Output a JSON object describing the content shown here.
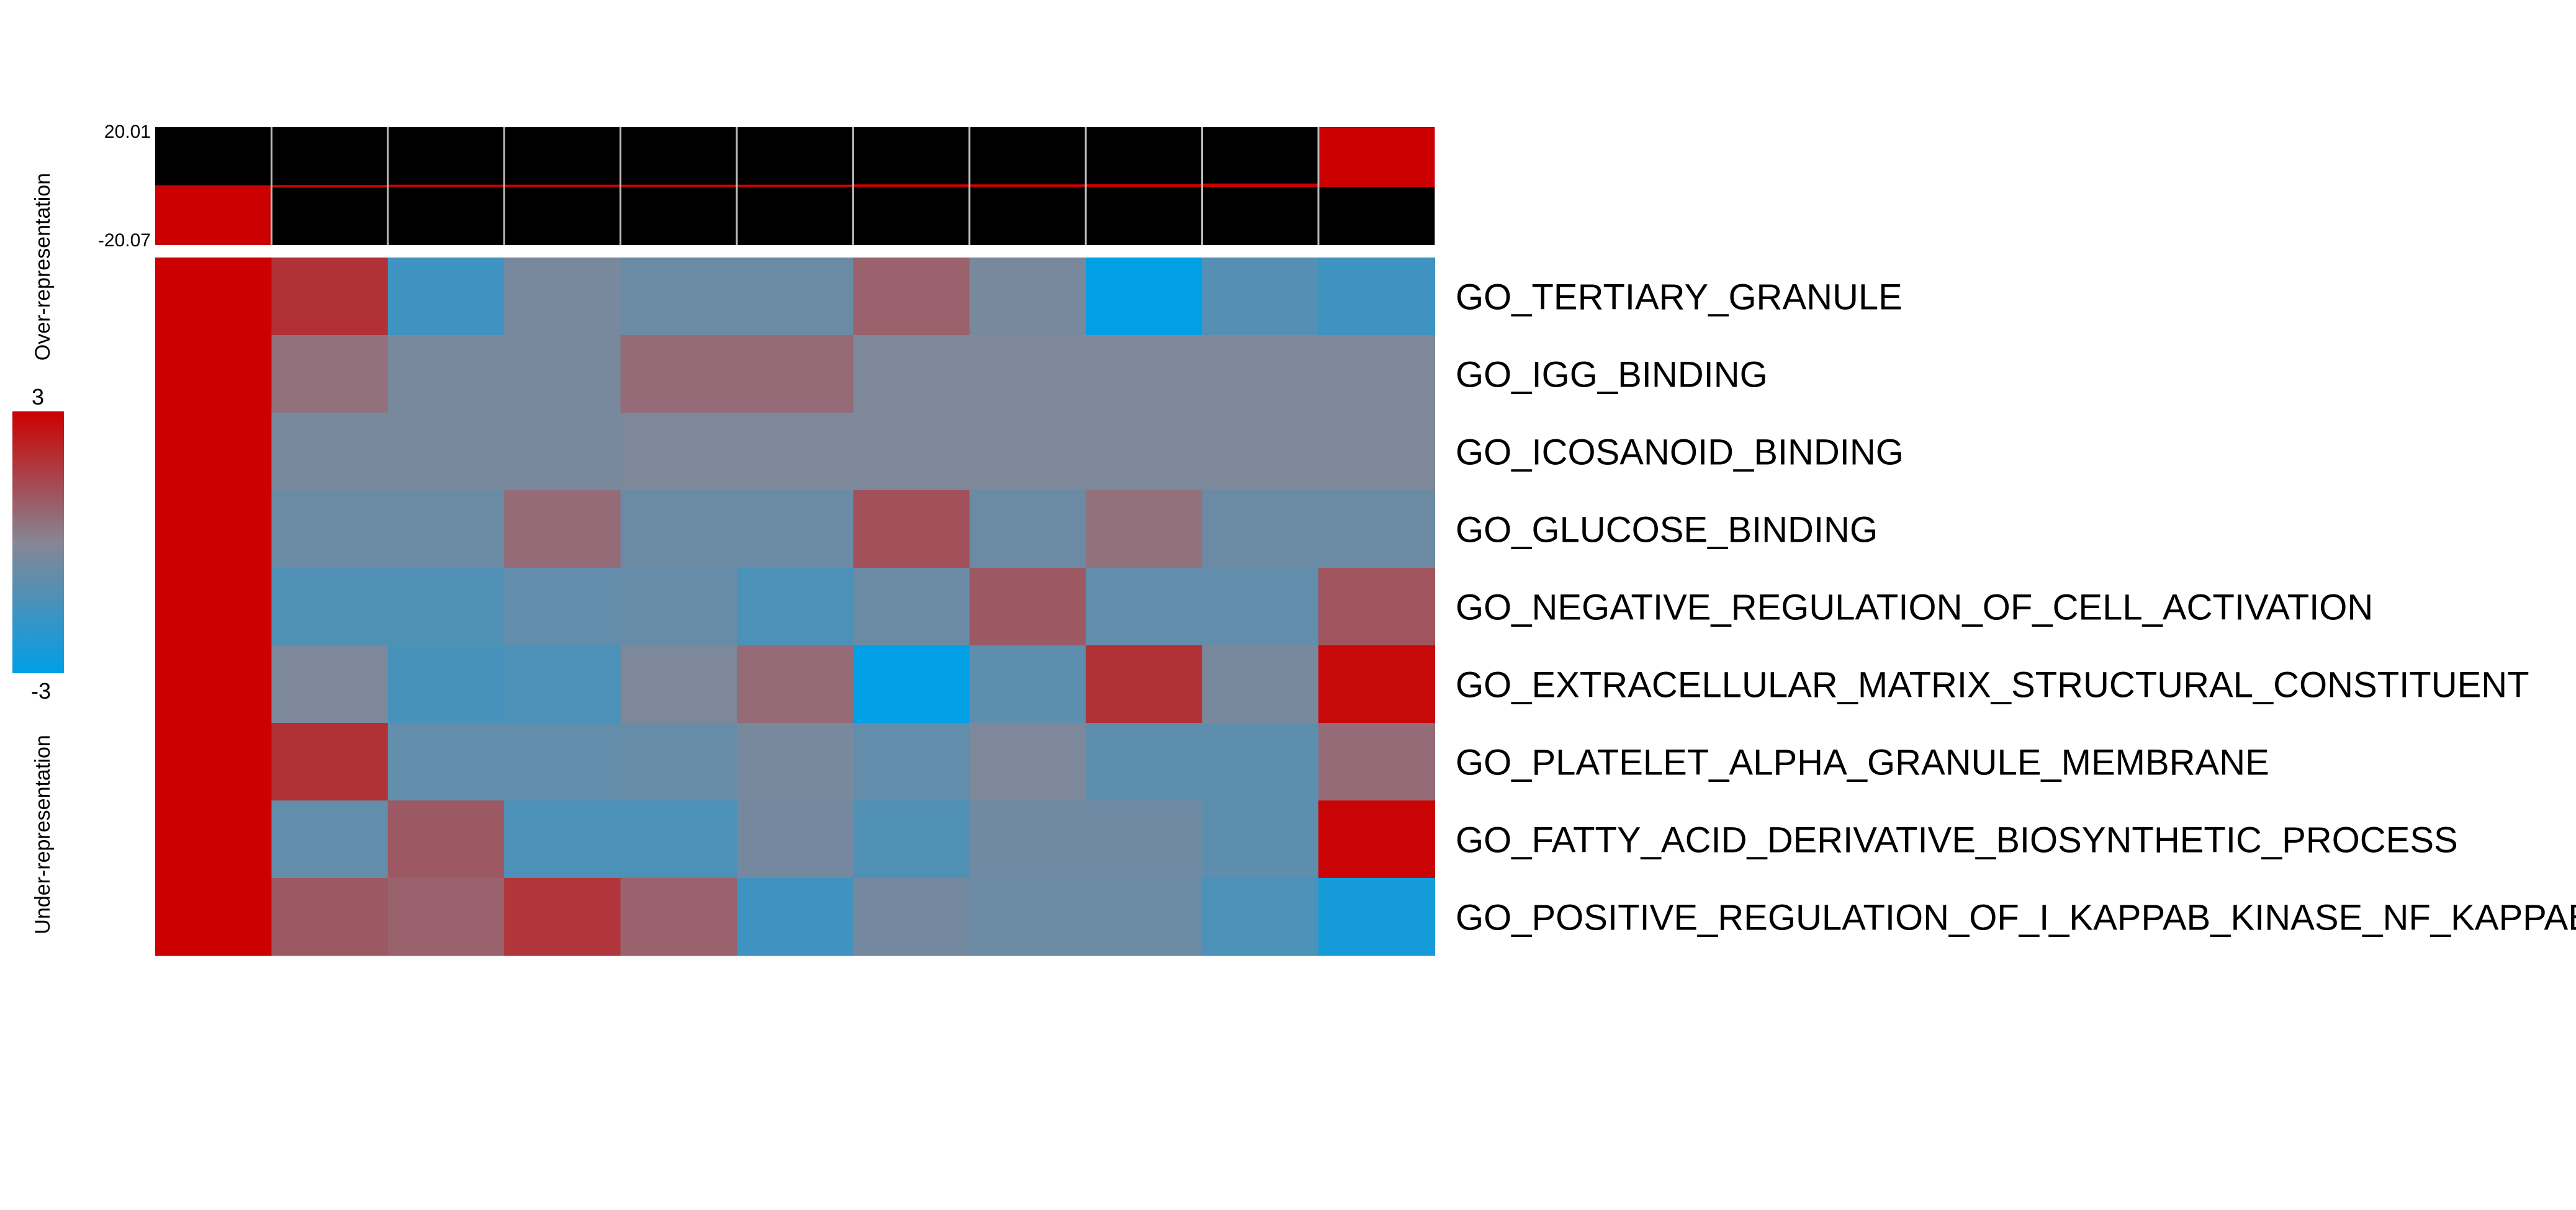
{
  "chart_data": {
    "type": "heatmap",
    "colorbar": {
      "min_label": "-3",
      "max_label": "3",
      "range": [
        -3,
        3
      ],
      "colors": [
        "#009fe6",
        "#868695",
        "#cc0000"
      ]
    },
    "side_labels": {
      "over": "Over-representation",
      "under": "Under-representation"
    },
    "top_bar": {
      "max_label": "20.01",
      "min_label": "-20.07",
      "range": [
        -20.07,
        20.01
      ],
      "over_values": [
        0,
        0.4,
        0.5,
        0.5,
        0.5,
        0.5,
        0.6,
        0.6,
        0.7,
        0.9,
        20.01
      ],
      "under_values": [
        -20.07,
        -0.5,
        -0.3,
        -0.3,
        -0.3,
        -0.3,
        -0.2,
        -0.2,
        -0.2,
        -0.1,
        0
      ],
      "bar_color": "#cc0000",
      "background_color": "#000000"
    },
    "rows": [
      "GO_TERTIARY_GRANULE",
      "GO_IGG_BINDING",
      "GO_ICOSANOID_BINDING",
      "GO_GLUCOSE_BINDING",
      "GO_NEGATIVE_REGULATION_OF_CELL_ACTIVATION",
      "GO_EXTRACELLULAR_MATRIX_STRUCTURAL_CONSTITUENT",
      "GO_PLATELET_ALPHA_GRANULE_MEMBRANE",
      "GO_FATTY_ACID_DERIVATIVE_BIOSYNTHETIC_PROCESS",
      "GO_POSITIVE_REGULATION_OF_I_KAPPAB_KINASE_NF_KAPPAB_SIGNALING"
    ],
    "values": [
      [
        3,
        1.9,
        -1.6,
        -0.3,
        -0.6,
        -0.6,
        0.8,
        -0.3,
        -3,
        -1.1,
        -1.6
      ],
      [
        3,
        0.5,
        -0.3,
        -0.3,
        0.6,
        0.6,
        -0.2,
        -0.2,
        -0.2,
        -0.2,
        -0.2
      ],
      [
        3,
        -0.3,
        -0.3,
        -0.3,
        -0.2,
        -0.2,
        -0.2,
        -0.2,
        -0.2,
        -0.2,
        -0.2
      ],
      [
        3,
        -0.6,
        -0.6,
        0.6,
        -0.6,
        -0.6,
        1.2,
        -0.6,
        0.5,
        -0.6,
        -0.6
      ],
      [
        3,
        -1.2,
        -1.2,
        -0.8,
        -0.7,
        -1.3,
        -0.6,
        1.0,
        -0.8,
        -0.8,
        1.1
      ],
      [
        3,
        -0.2,
        -1.4,
        -1.3,
        -0.2,
        0.6,
        -3,
        -0.9,
        1.9,
        -0.3,
        2.8
      ],
      [
        3,
        1.9,
        -0.8,
        -0.8,
        -0.7,
        -0.3,
        -0.8,
        -0.2,
        -0.9,
        -0.9,
        0.6
      ],
      [
        3,
        -0.8,
        1.0,
        -1.3,
        -1.3,
        -0.4,
        -1.2,
        -0.5,
        -0.5,
        -0.9,
        2.9
      ],
      [
        3,
        1.0,
        0.8,
        1.8,
        0.8,
        -1.6,
        -0.4,
        -0.6,
        -0.6,
        -1.3,
        -2.5
      ]
    ]
  }
}
